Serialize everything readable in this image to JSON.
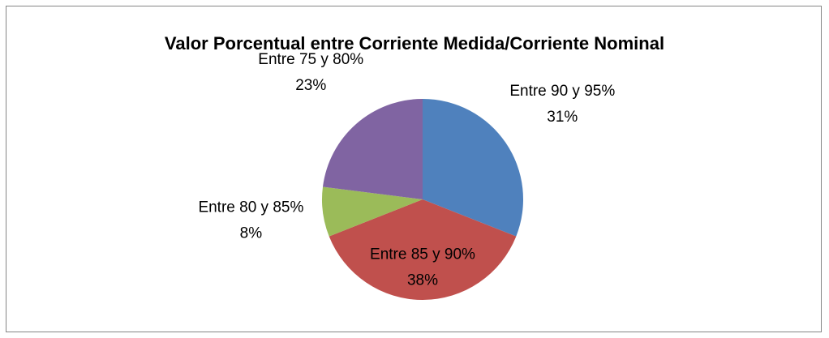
{
  "chart_data": {
    "type": "pie",
    "title": "Valor Porcentual entre Corriente Medida/Corriente Nominal",
    "categories": [
      "Entre 90 y 95%",
      "Entre 85 y 90%",
      "Entre 80 y 85%",
      "Entre 75 y 80%"
    ],
    "values": [
      31,
      38,
      8,
      23
    ],
    "value_labels": [
      "31%",
      "38%",
      "8%",
      "23%"
    ],
    "colors": [
      "#4f81bd",
      "#c0504d",
      "#9bbb59",
      "#8064a2"
    ]
  }
}
